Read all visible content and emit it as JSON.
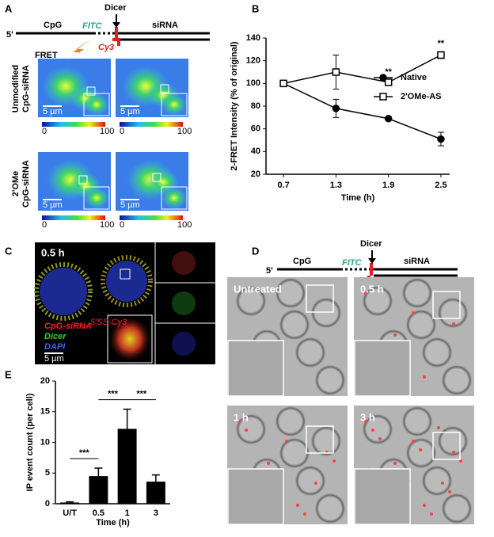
{
  "panel_labels": [
    "A",
    "B",
    "C",
    "D",
    "E"
  ],
  "panel_a": {
    "five_prime": "5'",
    "cpg": "CpG",
    "fitc": "FITC",
    "dicer": "Dicer",
    "sirna": "siRNA",
    "cy3": "Cy3",
    "fret": "FRET",
    "row_labels": [
      [
        "Unmodified",
        "CpG-siRNA"
      ],
      [
        "2'OMe",
        "CpG-siRNA"
      ]
    ],
    "scale": "5 µm",
    "colorbar": [
      "0",
      "100"
    ]
  },
  "panel_c": {
    "time": "0.5 h",
    "cpg_sirna": "CpG-siRNA",
    "superscript": "5'SS-Cy3",
    "dicer": "Dicer",
    "dapi": "DAPI",
    "scale": "5 µm"
  },
  "panel_d": {
    "five_prime": "5'",
    "cpg": "CpG",
    "fitc": "FITC",
    "dicer": "Dicer",
    "sirna": "siRNA",
    "images": [
      "Untreated",
      "0.5 h",
      "1 h",
      "3 h"
    ]
  },
  "chart_data": [
    {
      "type": "line",
      "xlabel": "Time (h)",
      "ylabel": "2-FRET Intensity (% of original)",
      "x": [
        0.7,
        1.3,
        1.9,
        2.5
      ],
      "xlim": [
        0.5,
        2.6
      ],
      "xticks": [
        0.7,
        1.3,
        1.9,
        2.5
      ],
      "ylim": [
        20,
        140
      ],
      "yticks": [
        20,
        40,
        60,
        80,
        100,
        120,
        140
      ],
      "grid": false,
      "legend": "right",
      "series": [
        {
          "name": "Native",
          "color": "#000000",
          "marker": "circle",
          "filled": true,
          "values": [
            100,
            78,
            69,
            51
          ],
          "errors": [
            null,
            8,
            null,
            6
          ]
        },
        {
          "name": "2'OMe-AS",
          "color": "#000000",
          "marker": "square",
          "filled": false,
          "values": [
            100,
            110,
            101,
            125
          ],
          "errors": [
            null,
            15,
            2,
            3
          ]
        }
      ],
      "annotations": [
        {
          "text": "**",
          "x": 1.9
        },
        {
          "text": "**",
          "x": 2.5
        }
      ]
    },
    {
      "type": "bar",
      "xlabel": "Time (h)",
      "ylabel": "IP event count (per cell)",
      "categories": [
        "U/T",
        "0.5",
        "1",
        "3"
      ],
      "values": [
        0.2,
        4.5,
        12.2,
        3.6
      ],
      "errors": [
        0.1,
        1.3,
        3.2,
        1.1
      ],
      "color": "#000000",
      "ylim": [
        0,
        20
      ],
      "yticks": [
        0,
        5,
        10,
        15,
        20
      ],
      "grid": false,
      "annotations": [
        {
          "text": "***",
          "between": [
            "U/T",
            "0.5"
          ]
        },
        {
          "text": "***",
          "between": [
            "0.5",
            "1"
          ]
        },
        {
          "text": "***",
          "between": [
            "1",
            "3"
          ]
        }
      ]
    }
  ]
}
